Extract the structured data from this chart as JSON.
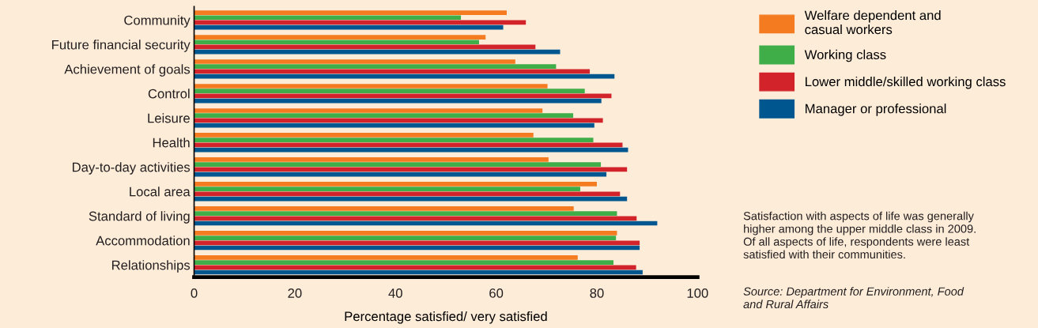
{
  "chart_data": {
    "type": "bar",
    "orientation": "horizontal",
    "xlabel": "Percentage satisfied/ very satisfied",
    "categories": [
      "Community",
      "Future financial security",
      "Achievement of goals",
      "Control",
      "Leisure",
      "Health",
      "Day-to-day activities",
      "Local area",
      "Standard of living",
      "Accommodation",
      "Relationships"
    ],
    "series": [
      {
        "name": "Welfare dependent and\ncasual workers",
        "color": "#f47b20",
        "values": [
          62.1,
          57.9,
          63.8,
          70.2,
          69.2,
          67.4,
          70.4,
          80.0,
          75.4,
          84.0,
          76.2
        ]
      },
      {
        "name": "Working class",
        "color": "#3fae49",
        "values": [
          53.0,
          56.6,
          71.9,
          77.6,
          75.3,
          79.3,
          80.8,
          76.7,
          84.0,
          83.8,
          83.3
        ]
      },
      {
        "name": "Lower middle/skilled working class",
        "color": "#d2232a",
        "values": [
          65.9,
          67.8,
          78.6,
          82.9,
          81.2,
          85.1,
          86.0,
          84.6,
          87.9,
          88.5,
          87.8
        ]
      },
      {
        "name": "Manager or professional",
        "color": "#00578f",
        "values": [
          61.4,
          72.7,
          83.5,
          80.9,
          79.5,
          86.2,
          81.9,
          86.0,
          92.0,
          88.5,
          89.1
        ]
      }
    ],
    "xlim": [
      0,
      100
    ],
    "xticks": [
      0,
      20,
      40,
      60,
      80,
      100
    ],
    "grid": false,
    "legend": "right",
    "annotations": [
      "Satisfaction with aspects of life was generally\nhigher among the upper middle class in 2009.\nOf all aspects of life, respondents were least\nsatisfied with their communities.",
      "Source: Department for Environment, Food\nand Rural Affairs"
    ]
  }
}
